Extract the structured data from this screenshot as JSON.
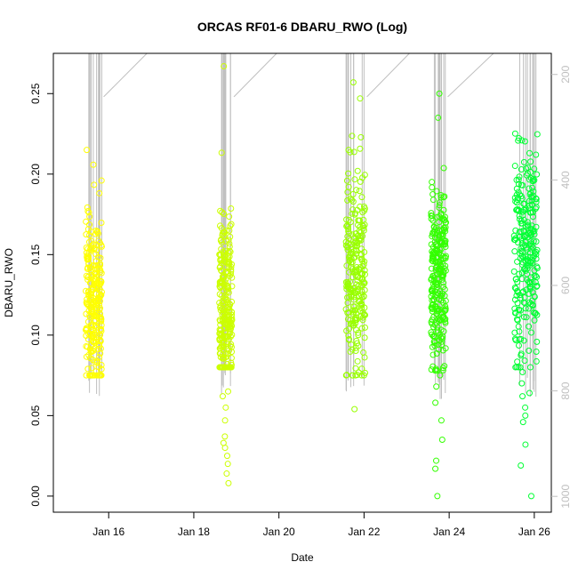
{
  "chart_data": {
    "type": "scatter",
    "title": "ORCAS RF01-6 DBARU_RWO (Log)",
    "xlabel": "Date",
    "ylabel": "DBARU_RWO",
    "x_ticks": [
      "Jan 16",
      "Jan 18",
      "Jan 20",
      "Jan 22",
      "Jan 24",
      "Jan 26"
    ],
    "x_tick_days": [
      16,
      18,
      20,
      22,
      24,
      26
    ],
    "xlim_days": [
      14.7,
      26.4
    ],
    "y_ticks": [
      "0.00",
      "0.05",
      "0.10",
      "0.15",
      "0.20",
      "0.25"
    ],
    "y_tick_values": [
      0.0,
      0.05,
      0.1,
      0.15,
      0.2,
      0.25
    ],
    "ylim": [
      -0.01,
      0.275
    ],
    "y2_ticks": [
      "200",
      "400",
      "600",
      "800",
      "1000"
    ],
    "y2_tick_values": [
      200,
      400,
      600,
      800,
      1000
    ],
    "y2lim_reversed": [
      1030,
      160
    ],
    "y2_color": "#bfbfbf",
    "grid": false,
    "flights": [
      {
        "center_day": 15.65,
        "width_days": 0.38,
        "y_range": [
          0.075,
          0.215
        ],
        "y_mean": 0.122,
        "color": "#ffff00",
        "outliers": []
      },
      {
        "center_day": 18.75,
        "width_days": 0.3,
        "y_range": [
          0.08,
          0.23
        ],
        "y_mean": 0.115,
        "color": "#ccff00",
        "outliers": [
          0.065,
          0.062,
          0.055,
          0.047,
          0.037,
          0.033,
          0.03,
          0.025,
          0.02,
          0.014,
          0.008,
          0.267
        ]
      },
      {
        "center_day": 21.8,
        "width_days": 0.45,
        "y_range": [
          0.075,
          0.24
        ],
        "y_mean": 0.135,
        "color": "#99ff00",
        "outliers": [
          0.257,
          0.247,
          0.054
        ]
      },
      {
        "center_day": 23.75,
        "width_days": 0.35,
        "y_range": [
          0.078,
          0.225
        ],
        "y_mean": 0.135,
        "color": "#33ff00",
        "outliers": [
          0.075,
          0.068,
          0.058,
          0.047,
          0.035,
          0.022,
          0.017,
          0.0,
          0.25,
          0.235
        ]
      },
      {
        "center_day": 25.8,
        "width_days": 0.55,
        "y_range": [
          0.08,
          0.245
        ],
        "y_mean": 0.15,
        "color": "#00ff33",
        "outliers": [
          0.077,
          0.062,
          0.055,
          0.05,
          0.046,
          0.032,
          0.019,
          0.0,
          0.07,
          0.064
        ]
      }
    ],
    "altitude_trace_color": "#bfbfbf"
  }
}
